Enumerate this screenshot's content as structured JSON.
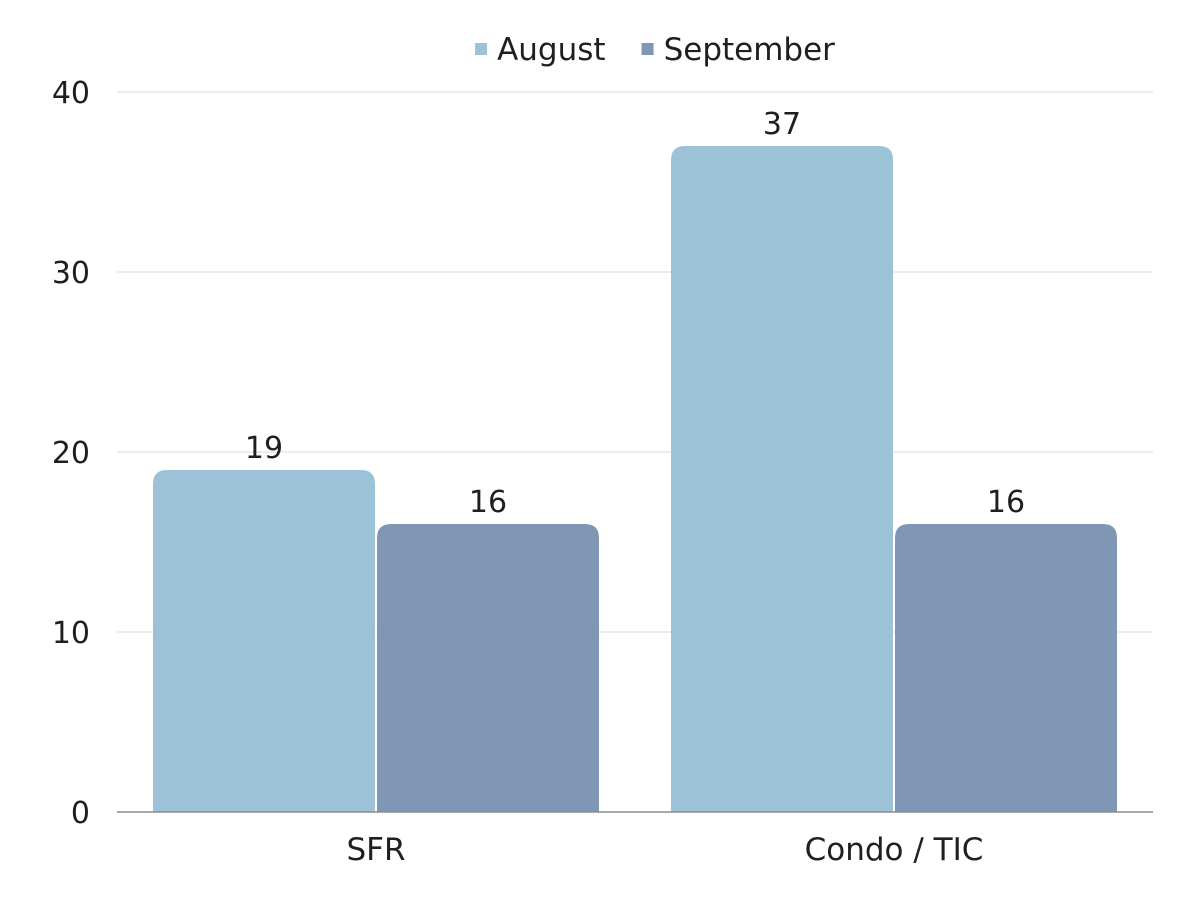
{
  "chart_data": {
    "type": "bar",
    "title": "",
    "xlabel": "",
    "ylabel": "",
    "categories": [
      "SFR",
      "Condo / TIC"
    ],
    "series": [
      {
        "name": "August",
        "values": [
          19,
          37
        ],
        "color": "#9bc2d7"
      },
      {
        "name": "September",
        "values": [
          16,
          16
        ],
        "color": "#7f97b4"
      }
    ],
    "ylim": [
      0,
      40
    ],
    "yticks": [
      0,
      10,
      20,
      30,
      40
    ],
    "grid": true,
    "legend_position": "top-center",
    "data_labels": true
  }
}
